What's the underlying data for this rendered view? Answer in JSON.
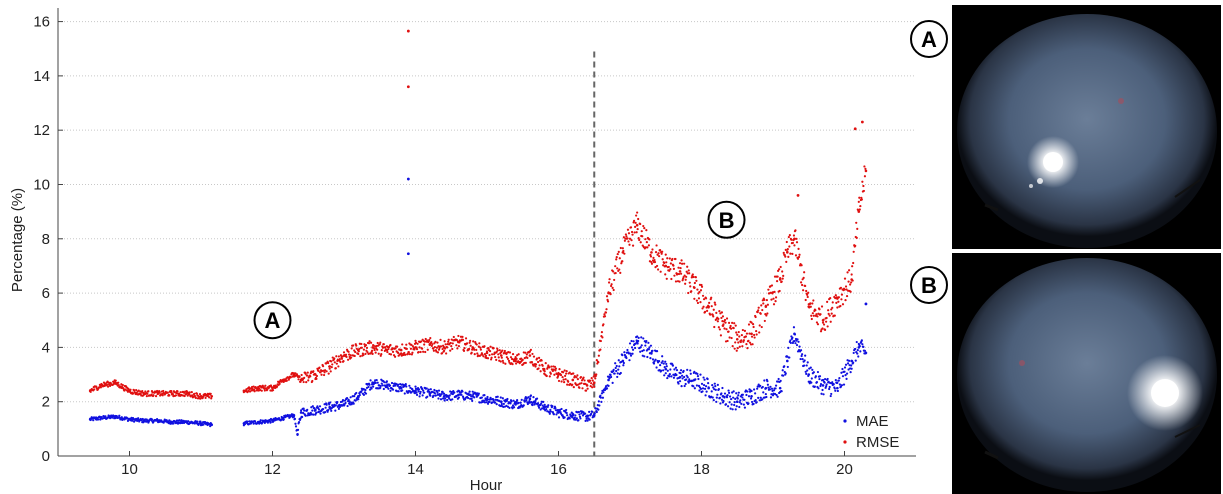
{
  "chart_data": {
    "type": "scatter",
    "xlabel": "Hour",
    "ylabel": "Percentage (%)",
    "xlim": [
      9.0,
      21.0
    ],
    "ylim": [
      0,
      16.5
    ],
    "xticks": [
      "10",
      "12",
      "14",
      "16",
      "18",
      "20"
    ],
    "yticks": [
      "0",
      "2",
      "4",
      "6",
      "8",
      "10",
      "12",
      "14",
      "16"
    ],
    "grid": "horizontal dotted",
    "vline_x": 16.5,
    "legend_position": "bottom-right",
    "series": [
      {
        "name": "MAE",
        "color": "#1010e0",
        "x": [
          9.45,
          9.6,
          9.8,
          10.0,
          10.2,
          10.4,
          10.6,
          10.8,
          11.0,
          11.15,
          11.6,
          11.8,
          12.0,
          12.15,
          12.3,
          12.35,
          12.4,
          12.6,
          12.8,
          13.0,
          13.2,
          13.4,
          13.6,
          13.8,
          14.0,
          14.2,
          14.4,
          14.6,
          14.8,
          15.0,
          15.2,
          15.4,
          15.6,
          15.8,
          16.0,
          16.2,
          16.4,
          16.5,
          16.7,
          16.9,
          17.1,
          17.3,
          17.5,
          17.7,
          17.9,
          18.1,
          18.3,
          18.5,
          18.7,
          18.9,
          19.1,
          19.2,
          19.3,
          19.5,
          19.7,
          19.9,
          20.1,
          20.2,
          20.3
        ],
        "y": [
          1.35,
          1.4,
          1.45,
          1.35,
          1.3,
          1.3,
          1.25,
          1.25,
          1.2,
          1.15,
          1.2,
          1.25,
          1.3,
          1.4,
          1.5,
          0.8,
          1.6,
          1.7,
          1.8,
          1.9,
          2.2,
          2.7,
          2.6,
          2.5,
          2.4,
          2.3,
          2.2,
          2.25,
          2.2,
          2.1,
          2.0,
          1.9,
          2.1,
          1.8,
          1.6,
          1.5,
          1.45,
          1.5,
          2.8,
          3.5,
          4.2,
          3.8,
          3.2,
          2.9,
          2.8,
          2.5,
          2.2,
          2.0,
          2.2,
          2.5,
          2.5,
          3.5,
          4.5,
          3.0,
          2.6,
          2.5,
          3.5,
          4.0,
          3.8
        ]
      },
      {
        "name": "RMSE",
        "color": "#e01010",
        "x": [
          9.45,
          9.6,
          9.8,
          10.0,
          10.2,
          10.4,
          10.6,
          10.8,
          11.0,
          11.15,
          11.6,
          11.8,
          12.0,
          12.15,
          12.3,
          12.4,
          12.6,
          12.8,
          13.0,
          13.2,
          13.4,
          13.6,
          13.8,
          14.0,
          14.2,
          14.4,
          14.6,
          14.8,
          15.0,
          15.2,
          15.4,
          15.6,
          15.8,
          16.0,
          16.2,
          16.4,
          16.5,
          16.7,
          16.9,
          17.1,
          17.3,
          17.5,
          17.7,
          17.9,
          18.1,
          18.3,
          18.5,
          18.7,
          18.9,
          19.1,
          19.2,
          19.3,
          19.5,
          19.7,
          19.9,
          20.1,
          20.2,
          20.3
        ],
        "y": [
          2.4,
          2.6,
          2.7,
          2.4,
          2.3,
          2.3,
          2.3,
          2.3,
          2.2,
          2.2,
          2.4,
          2.5,
          2.5,
          2.8,
          3.0,
          2.8,
          3.0,
          3.3,
          3.7,
          3.9,
          4.0,
          3.9,
          3.9,
          4.0,
          4.1,
          4.0,
          4.2,
          4.0,
          3.8,
          3.7,
          3.5,
          3.7,
          3.2,
          3.0,
          2.8,
          2.6,
          2.7,
          6.0,
          7.5,
          8.5,
          7.5,
          7.0,
          6.8,
          6.2,
          5.5,
          4.8,
          4.3,
          4.5,
          5.5,
          6.5,
          7.5,
          8.0,
          5.5,
          5.0,
          5.8,
          6.5,
          9.0,
          10.5
        ]
      }
    ],
    "outliers": [
      {
        "series": "RMSE",
        "x": 13.9,
        "y": 15.65
      },
      {
        "series": "RMSE",
        "x": 13.9,
        "y": 13.6
      },
      {
        "series": "MAE",
        "x": 13.9,
        "y": 10.2
      },
      {
        "series": "MAE",
        "x": 13.9,
        "y": 7.45
      },
      {
        "series": "RMSE",
        "x": 20.25,
        "y": 12.3
      },
      {
        "series": "RMSE",
        "x": 20.15,
        "y": 12.05
      },
      {
        "series": "MAE",
        "x": 20.3,
        "y": 5.6
      },
      {
        "series": "RMSE",
        "x": 19.35,
        "y": 9.6
      }
    ],
    "annotations": [
      {
        "label": "A",
        "x": 12.0,
        "y": 5.0
      },
      {
        "label": "B",
        "x": 18.35,
        "y": 8.7
      }
    ]
  },
  "images": [
    {
      "label": "A",
      "description_icon": "sky-camera-image"
    },
    {
      "label": "B",
      "description_icon": "sky-camera-image"
    }
  ]
}
